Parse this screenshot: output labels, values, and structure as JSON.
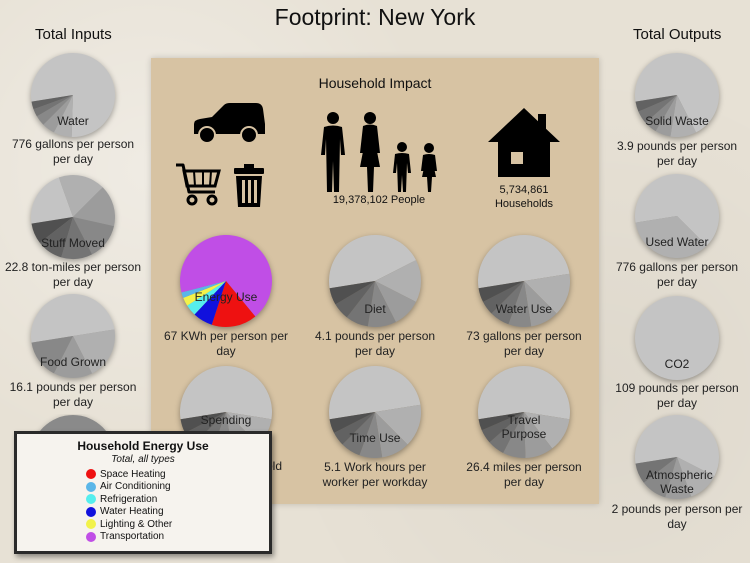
{
  "app": {
    "title": "Footprint: New York"
  },
  "columns": {
    "inputs_title": "Total Inputs",
    "outputs_title": "Total Outputs"
  },
  "panel": {
    "title": "Household Impact",
    "icons": {
      "vehicle": "car-icon",
      "cart": "shopping-cart-icon",
      "trash": "trash-can-icon",
      "people": "family-icon",
      "house": "house-icon"
    },
    "people_count": "19,378,102 People",
    "households": {
      "count": "5,734,861",
      "label": "Households"
    }
  },
  "inputs": [
    {
      "label": "Water",
      "caption1": "776 gallons per person",
      "caption2": "per day",
      "slices": [
        0.78,
        0.07,
        0.05,
        0.04,
        0.03,
        0.03
      ]
    },
    {
      "label": "Stuff Moved",
      "caption1": "22.8 ton-miles per person",
      "caption2": "per day",
      "slices": [
        0.22,
        0.18,
        0.16,
        0.14,
        0.12,
        0.1,
        0.08
      ]
    },
    {
      "label": "Food Grown",
      "caption1": "16.1 pounds per person",
      "caption2": "per day",
      "slices": [
        0.5,
        0.2,
        0.15,
        0.15
      ]
    }
  ],
  "outputs": [
    {
      "label": "Solid Waste",
      "caption1": "3.9 pounds per person",
      "caption2": "per day",
      "slices": [
        0.7,
        0.1,
        0.06,
        0.05,
        0.05,
        0.04
      ]
    },
    {
      "label": "Used Water",
      "caption1": "776 gallons per person",
      "caption2": "per day",
      "slices": [
        0.65,
        0.35
      ]
    },
    {
      "label": "CO2",
      "caption1": "109 pounds per person",
      "caption2": "per day",
      "slices": [
        1.0
      ]
    },
    {
      "label": "Atmospheric Waste",
      "caption1": "2 pounds per person per",
      "caption2": "day",
      "slices": [
        0.6,
        0.12,
        0.1,
        0.1,
        0.08
      ]
    }
  ],
  "household_pies": [
    {
      "label": "Energy Use",
      "caption1": "67 KWh per person per",
      "caption2": "day",
      "colored": true,
      "slices": [
        0.68,
        0.16,
        0.07,
        0.04,
        0.03,
        0.02
      ]
    },
    {
      "label": "Diet",
      "caption1": "4.1 pounds per person",
      "caption2": "per day",
      "colored": false,
      "slices": [
        0.45,
        0.15,
        0.1,
        0.1,
        0.08,
        0.06,
        0.06
      ]
    },
    {
      "label": "Water Use",
      "caption1": "73 gallons per person",
      "caption2": "per day",
      "colored": false,
      "slices": [
        0.5,
        0.15,
        0.1,
        0.08,
        0.07,
        0.05,
        0.05
      ]
    },
    {
      "label": "Spending",
      "caption1": "",
      "caption2": "",
      "colored": false,
      "slices": [
        0.55,
        0.1,
        0.1,
        0.08,
        0.07,
        0.05,
        0.05
      ]
    },
    {
      "label": "Time Use",
      "caption1": "5.1 Work hours per",
      "caption2": "worker per workday",
      "colored": false,
      "slices": [
        0.5,
        0.15,
        0.1,
        0.08,
        0.07,
        0.05,
        0.05
      ]
    },
    {
      "label": "Travel Purpose",
      "caption1": "26.4 miles per person",
      "caption2": "per day",
      "colored": false,
      "slices": [
        0.55,
        0.12,
        0.1,
        0.08,
        0.06,
        0.05,
        0.04
      ]
    }
  ],
  "legend": {
    "title": "Household Energy Use",
    "subtitle": "Total, all types",
    "items": [
      {
        "label": "Space Heating",
        "color": "#ee1111"
      },
      {
        "label": "Air Conditioning",
        "color": "#5ab6e8"
      },
      {
        "label": "Refrigeration",
        "color": "#55eeee"
      },
      {
        "label": "Water Heating",
        "color": "#1111dd"
      },
      {
        "label": "Lighting & Other",
        "color": "#f2f24a"
      },
      {
        "label": "Transportation",
        "color": "#c04ee6"
      }
    ]
  },
  "partial_caption": "old"
}
